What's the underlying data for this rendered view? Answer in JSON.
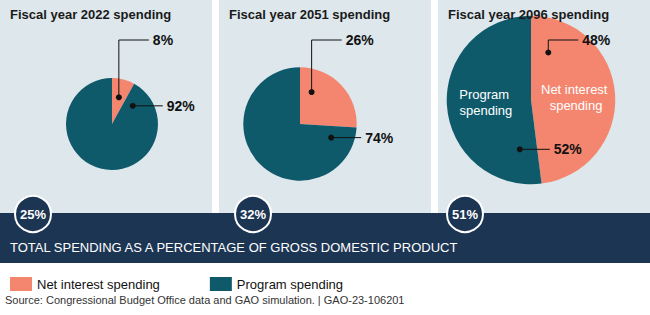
{
  "chart_data": [
    {
      "type": "pie",
      "title": "Fiscal year 2022 spending",
      "categories": [
        "Net interest spending",
        "Program spending"
      ],
      "values": [
        8,
        92
      ],
      "value_labels": [
        "8%",
        "92%"
      ],
      "colors": [
        "#f4866f",
        "#0e5a6b"
      ],
      "data_labels": true,
      "total_spending": {
        "value": 25,
        "label": "25%"
      }
    },
    {
      "type": "pie",
      "title": "Fiscal year 2051 spending",
      "categories": [
        "Net interest spending",
        "Program spending"
      ],
      "values": [
        26,
        74
      ],
      "value_labels": [
        "26%",
        "74%"
      ],
      "colors": [
        "#f4866f",
        "#0e5a6b"
      ],
      "data_labels": true,
      "total_spending": {
        "value": 32,
        "label": "32%"
      }
    },
    {
      "type": "pie",
      "title": "Fiscal year 2096 spending",
      "categories": [
        "Net interest spending",
        "Program spending"
      ],
      "values": [
        48,
        52
      ],
      "value_labels": [
        "48%",
        "52%"
      ],
      "colors": [
        "#f4866f",
        "#0e5a6b"
      ],
      "data_labels": true,
      "slice_texts": [
        "Net interest spending",
        "Program spending"
      ],
      "total_spending": {
        "value": 51,
        "label": "51%"
      }
    }
  ],
  "banner": "TOTAL SPENDING AS A PERCENTAGE OF GROSS DOMESTIC PRODUCT",
  "legend": "bottom",
  "source": "Source: Congressional Budget Office data and GAO simulation. | GAO-23-106201"
}
